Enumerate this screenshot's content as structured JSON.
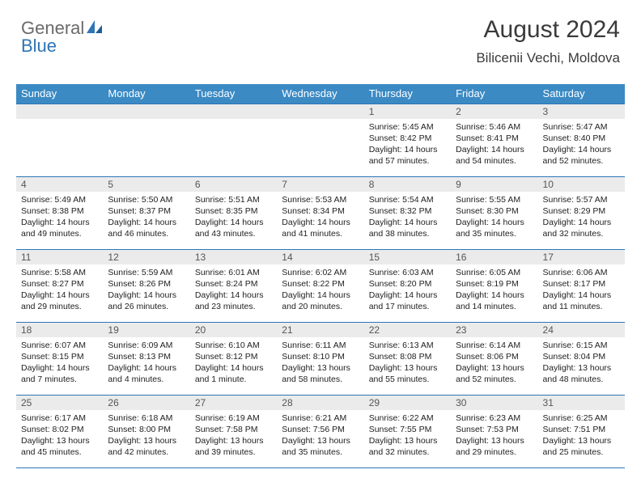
{
  "logo": {
    "text1": "General",
    "text2": "Blue"
  },
  "header": {
    "month_title": "August 2024",
    "location": "Bilicenii Vechi, Moldova"
  },
  "colors": {
    "header_bg": "#3b8ac4",
    "header_fg": "#ffffff",
    "rule": "#2e75b6",
    "daynum_bg": "#ebebeb",
    "logo_blue": "#2e75b6",
    "logo_gray": "#6a6a6a"
  },
  "day_headers": [
    "Sunday",
    "Monday",
    "Tuesday",
    "Wednesday",
    "Thursday",
    "Friday",
    "Saturday"
  ],
  "weeks": [
    [
      {
        "n": "",
        "sunrise": "",
        "sunset": "",
        "daylight": ""
      },
      {
        "n": "",
        "sunrise": "",
        "sunset": "",
        "daylight": ""
      },
      {
        "n": "",
        "sunrise": "",
        "sunset": "",
        "daylight": ""
      },
      {
        "n": "",
        "sunrise": "",
        "sunset": "",
        "daylight": ""
      },
      {
        "n": "1",
        "sunrise": "Sunrise: 5:45 AM",
        "sunset": "Sunset: 8:42 PM",
        "daylight": "Daylight: 14 hours and 57 minutes."
      },
      {
        "n": "2",
        "sunrise": "Sunrise: 5:46 AM",
        "sunset": "Sunset: 8:41 PM",
        "daylight": "Daylight: 14 hours and 54 minutes."
      },
      {
        "n": "3",
        "sunrise": "Sunrise: 5:47 AM",
        "sunset": "Sunset: 8:40 PM",
        "daylight": "Daylight: 14 hours and 52 minutes."
      }
    ],
    [
      {
        "n": "4",
        "sunrise": "Sunrise: 5:49 AM",
        "sunset": "Sunset: 8:38 PM",
        "daylight": "Daylight: 14 hours and 49 minutes."
      },
      {
        "n": "5",
        "sunrise": "Sunrise: 5:50 AM",
        "sunset": "Sunset: 8:37 PM",
        "daylight": "Daylight: 14 hours and 46 minutes."
      },
      {
        "n": "6",
        "sunrise": "Sunrise: 5:51 AM",
        "sunset": "Sunset: 8:35 PM",
        "daylight": "Daylight: 14 hours and 43 minutes."
      },
      {
        "n": "7",
        "sunrise": "Sunrise: 5:53 AM",
        "sunset": "Sunset: 8:34 PM",
        "daylight": "Daylight: 14 hours and 41 minutes."
      },
      {
        "n": "8",
        "sunrise": "Sunrise: 5:54 AM",
        "sunset": "Sunset: 8:32 PM",
        "daylight": "Daylight: 14 hours and 38 minutes."
      },
      {
        "n": "9",
        "sunrise": "Sunrise: 5:55 AM",
        "sunset": "Sunset: 8:30 PM",
        "daylight": "Daylight: 14 hours and 35 minutes."
      },
      {
        "n": "10",
        "sunrise": "Sunrise: 5:57 AM",
        "sunset": "Sunset: 8:29 PM",
        "daylight": "Daylight: 14 hours and 32 minutes."
      }
    ],
    [
      {
        "n": "11",
        "sunrise": "Sunrise: 5:58 AM",
        "sunset": "Sunset: 8:27 PM",
        "daylight": "Daylight: 14 hours and 29 minutes."
      },
      {
        "n": "12",
        "sunrise": "Sunrise: 5:59 AM",
        "sunset": "Sunset: 8:26 PM",
        "daylight": "Daylight: 14 hours and 26 minutes."
      },
      {
        "n": "13",
        "sunrise": "Sunrise: 6:01 AM",
        "sunset": "Sunset: 8:24 PM",
        "daylight": "Daylight: 14 hours and 23 minutes."
      },
      {
        "n": "14",
        "sunrise": "Sunrise: 6:02 AM",
        "sunset": "Sunset: 8:22 PM",
        "daylight": "Daylight: 14 hours and 20 minutes."
      },
      {
        "n": "15",
        "sunrise": "Sunrise: 6:03 AM",
        "sunset": "Sunset: 8:20 PM",
        "daylight": "Daylight: 14 hours and 17 minutes."
      },
      {
        "n": "16",
        "sunrise": "Sunrise: 6:05 AM",
        "sunset": "Sunset: 8:19 PM",
        "daylight": "Daylight: 14 hours and 14 minutes."
      },
      {
        "n": "17",
        "sunrise": "Sunrise: 6:06 AM",
        "sunset": "Sunset: 8:17 PM",
        "daylight": "Daylight: 14 hours and 11 minutes."
      }
    ],
    [
      {
        "n": "18",
        "sunrise": "Sunrise: 6:07 AM",
        "sunset": "Sunset: 8:15 PM",
        "daylight": "Daylight: 14 hours and 7 minutes."
      },
      {
        "n": "19",
        "sunrise": "Sunrise: 6:09 AM",
        "sunset": "Sunset: 8:13 PM",
        "daylight": "Daylight: 14 hours and 4 minutes."
      },
      {
        "n": "20",
        "sunrise": "Sunrise: 6:10 AM",
        "sunset": "Sunset: 8:12 PM",
        "daylight": "Daylight: 14 hours and 1 minute."
      },
      {
        "n": "21",
        "sunrise": "Sunrise: 6:11 AM",
        "sunset": "Sunset: 8:10 PM",
        "daylight": "Daylight: 13 hours and 58 minutes."
      },
      {
        "n": "22",
        "sunrise": "Sunrise: 6:13 AM",
        "sunset": "Sunset: 8:08 PM",
        "daylight": "Daylight: 13 hours and 55 minutes."
      },
      {
        "n": "23",
        "sunrise": "Sunrise: 6:14 AM",
        "sunset": "Sunset: 8:06 PM",
        "daylight": "Daylight: 13 hours and 52 minutes."
      },
      {
        "n": "24",
        "sunrise": "Sunrise: 6:15 AM",
        "sunset": "Sunset: 8:04 PM",
        "daylight": "Daylight: 13 hours and 48 minutes."
      }
    ],
    [
      {
        "n": "25",
        "sunrise": "Sunrise: 6:17 AM",
        "sunset": "Sunset: 8:02 PM",
        "daylight": "Daylight: 13 hours and 45 minutes."
      },
      {
        "n": "26",
        "sunrise": "Sunrise: 6:18 AM",
        "sunset": "Sunset: 8:00 PM",
        "daylight": "Daylight: 13 hours and 42 minutes."
      },
      {
        "n": "27",
        "sunrise": "Sunrise: 6:19 AM",
        "sunset": "Sunset: 7:58 PM",
        "daylight": "Daylight: 13 hours and 39 minutes."
      },
      {
        "n": "28",
        "sunrise": "Sunrise: 6:21 AM",
        "sunset": "Sunset: 7:56 PM",
        "daylight": "Daylight: 13 hours and 35 minutes."
      },
      {
        "n": "29",
        "sunrise": "Sunrise: 6:22 AM",
        "sunset": "Sunset: 7:55 PM",
        "daylight": "Daylight: 13 hours and 32 minutes."
      },
      {
        "n": "30",
        "sunrise": "Sunrise: 6:23 AM",
        "sunset": "Sunset: 7:53 PM",
        "daylight": "Daylight: 13 hours and 29 minutes."
      },
      {
        "n": "31",
        "sunrise": "Sunrise: 6:25 AM",
        "sunset": "Sunset: 7:51 PM",
        "daylight": "Daylight: 13 hours and 25 minutes."
      }
    ]
  ]
}
